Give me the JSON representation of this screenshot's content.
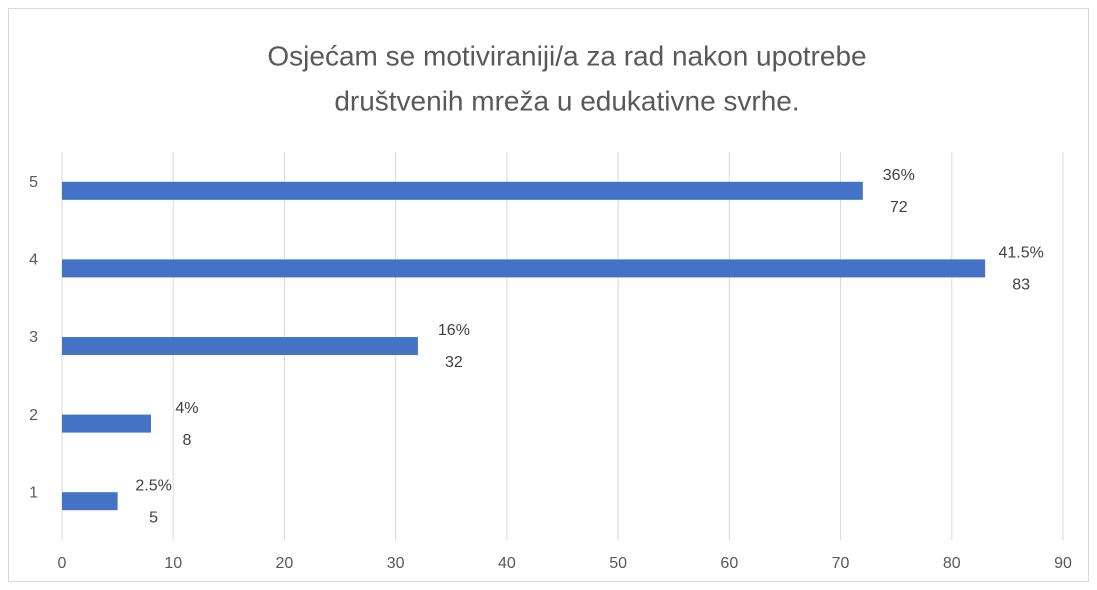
{
  "chart_data": {
    "type": "barh",
    "title": [
      "Osjećam se motiviraniji/a za rad nakon upotrebe",
      "društvenih mreža u edukativne svrhe."
    ],
    "categories": [
      "1",
      "2",
      "3",
      "4",
      "5"
    ],
    "values": [
      5,
      8,
      32,
      83,
      72
    ],
    "percent_values": [
      2.5,
      4,
      16,
      41.5,
      36
    ],
    "percent_labels": [
      "2.5%",
      "4%",
      "16%",
      "41.5%",
      "36%"
    ],
    "color": "#4472c4",
    "xlim": [
      0,
      90
    ],
    "xticks": [
      0,
      10,
      20,
      30,
      40,
      50,
      60,
      70,
      80,
      90
    ],
    "grid": true
  }
}
